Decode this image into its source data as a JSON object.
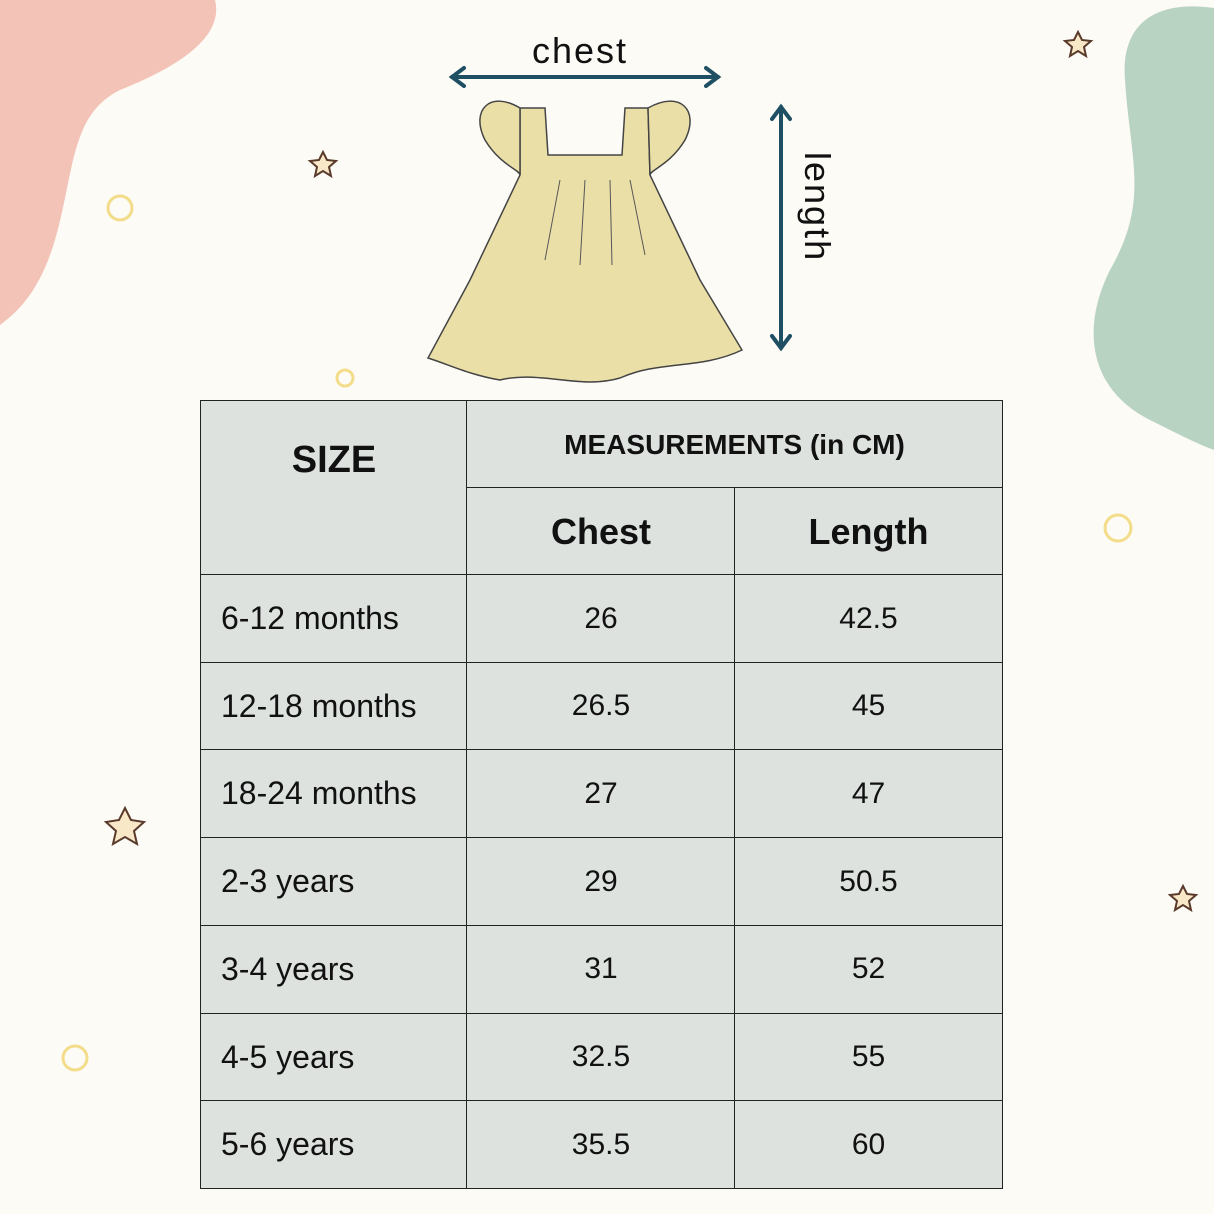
{
  "diagram": {
    "chest_label": "chest",
    "length_label": "length"
  },
  "table": {
    "header": {
      "size": "SIZE",
      "measurements": "MEASUREMENTS (in CM)",
      "chest": "Chest",
      "length": "Length"
    },
    "rows": [
      [
        "6-12 months",
        26,
        42.5
      ],
      [
        "12-18 months",
        26.5,
        45
      ],
      [
        "18-24 months",
        27,
        47
      ],
      [
        "2-3 years",
        29,
        50.5
      ],
      [
        "3-4 years",
        31,
        52
      ],
      [
        "4-5 years",
        32.5,
        55
      ],
      [
        "5-6 years",
        35.5,
        60
      ]
    ]
  }
}
